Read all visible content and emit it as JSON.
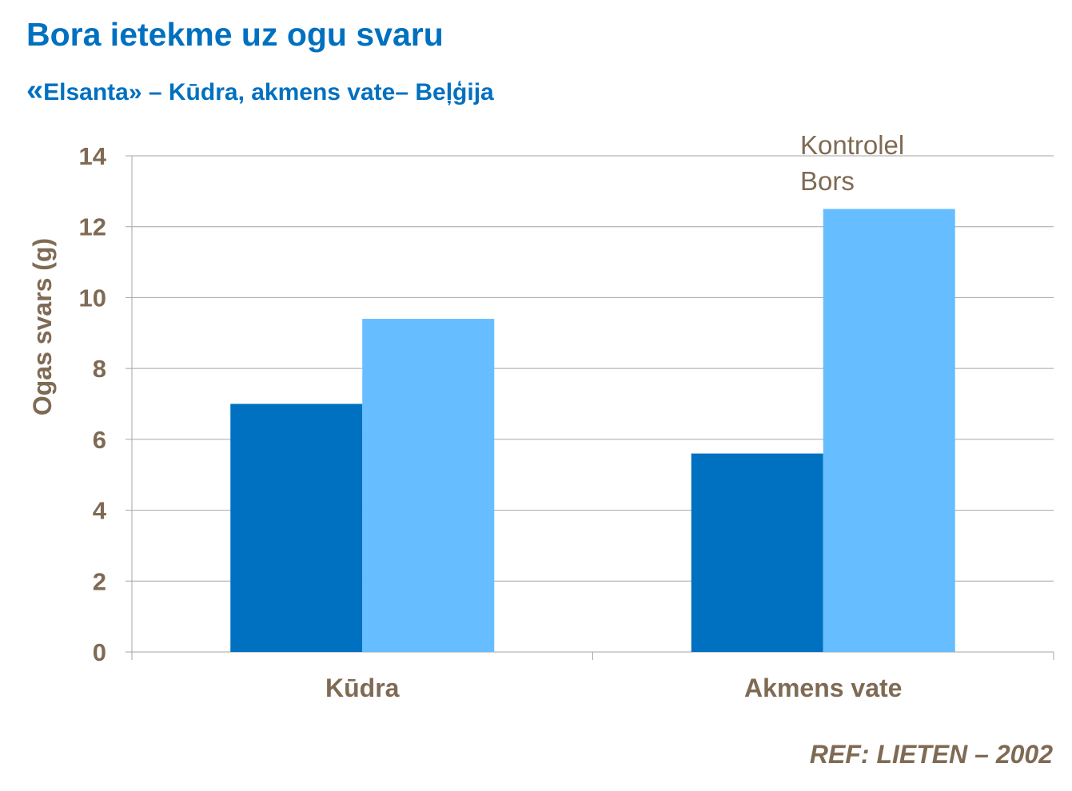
{
  "header": {
    "title": "Bora ietekme uz ogu svaru",
    "subtitle_open": "«",
    "subtitle_text": "Elsanta» – Kūdra, akmens vate– Beļģija"
  },
  "footer": {
    "reference": "REF:  LIETEN – 2002"
  },
  "chart_data": {
    "type": "bar",
    "title": "Bora ietekme uz ogu svaru",
    "xlabel": "",
    "ylabel": "Ogas svars (g)",
    "categories": [
      "Kūdra",
      "Akmens vate"
    ],
    "series": [
      {
        "name": "Kontrolel",
        "color": "#0070C0",
        "values": [
          7.0,
          5.6
        ]
      },
      {
        "name": "Bors",
        "color": "#66BDFF",
        "values": [
          9.4,
          12.5
        ]
      }
    ],
    "ylim": [
      0,
      14
    ],
    "yticks": [
      0,
      2,
      4,
      6,
      8,
      10,
      12,
      14
    ],
    "grid": true,
    "legend_position": "top-right"
  }
}
